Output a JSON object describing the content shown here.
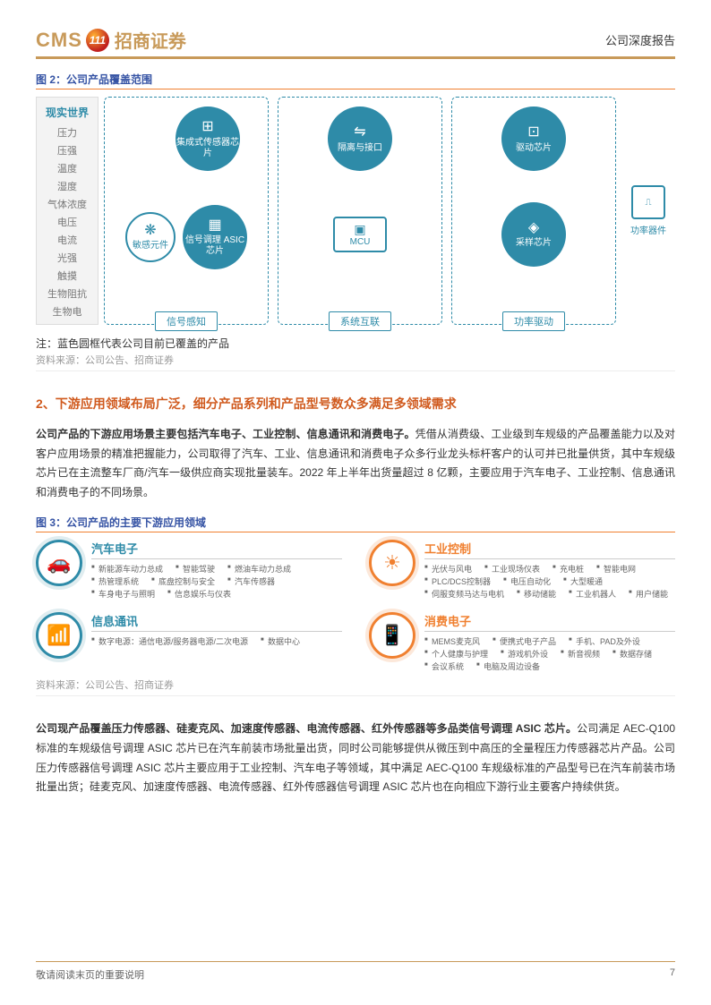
{
  "header": {
    "logo_cms": "CMS",
    "logo_badge": "111",
    "logo_cn": "招商证券",
    "doc_type": "公司深度报告"
  },
  "colors": {
    "accent_gold": "#c89a5a",
    "accent_blue": "#3553a4",
    "accent_orange": "#f08030",
    "teal": "#2e8ba8",
    "section_orange": "#d05a1e"
  },
  "figure2": {
    "title": "图 2：公司产品覆盖范围",
    "sensor_header": "现实世界",
    "sensors": [
      "压力",
      "压强",
      "温度",
      "湿度",
      "气体浓度",
      "电压",
      "电流",
      "光强",
      "触摸",
      "生物阻抗",
      "生物电"
    ],
    "group1": {
      "label": "信号感知",
      "node_a": "敏感元件",
      "node_b1": "集成式传感器芯片",
      "node_b2": "信号调理\nASIC芯片"
    },
    "group2": {
      "label": "系统互联",
      "node_top": "隔离与接口",
      "node_bottom": "MCU"
    },
    "group3": {
      "label": "功率驱动",
      "node_top": "驱动芯片",
      "node_bottom": "采样芯片"
    },
    "power": "功率器件",
    "note": "注：蓝色圆框代表公司目前已覆盖的产品",
    "source": "资料来源：公司公告、招商证券"
  },
  "section2": {
    "heading": "2、下游应用领域布局广泛，细分产品系列和产品型号数众多满足多领域需求",
    "para_bold": "公司产品的下游应用场景主要包括汽车电子、工业控制、信息通讯和消费电子。",
    "para_rest": "凭借从消费级、工业级到车规级的产品覆盖能力以及对客户应用场景的精准把握能力，公司取得了汽车、工业、信息通讯和消费电子众多行业龙头标杆客户的认可并已批量供货，其中车规级芯片已在主流整车厂商/汽车一级供应商实现批量装车。2022 年上半年出货量超过 8 亿颗，主要应用于汽车电子、工业控制、信息通讯和消费电子的不同场景。"
  },
  "figure3": {
    "title": "图 3：公司产品的主要下游应用领域",
    "apps": [
      {
        "title": "汽车电子",
        "color": "blue",
        "items": [
          "新能源车动力总成",
          "智能驾驶",
          "燃油车动力总成",
          "热管理系统",
          "底盘控制与安全",
          "汽车传感器",
          "车身电子与照明",
          "信息娱乐与仪表"
        ]
      },
      {
        "title": "工业控制",
        "color": "orange",
        "items": [
          "光伏与风电",
          "工业现场仪表",
          "充电桩",
          "智能电网",
          "PLC/DCS控制器",
          "电压自动化",
          "大型暖通",
          "伺服变频马达与电机",
          "移动储能",
          "工业机器人",
          "用户储能"
        ]
      },
      {
        "title": "信息通讯",
        "color": "blue",
        "items": [
          "数字电源：通信电源/服务器电源/二次电源",
          "数据中心"
        ]
      },
      {
        "title": "消费电子",
        "color": "orange",
        "items": [
          "MEMS麦克风",
          "便携式电子产品",
          "手机、PAD及外设",
          "个人健康与护理",
          "游戏机外设",
          "新音视频",
          "数据存储",
          "会议系统",
          "电脑及周边设备"
        ]
      }
    ],
    "source": "资料来源：公司公告、招商证券"
  },
  "para3": {
    "bold": "公司现产品覆盖压力传感器、硅麦克风、加速度传感器、电流传感器、红外传感器等多品类信号调理 ASIC 芯片。",
    "rest": "公司满足 AEC-Q100 标准的车规级信号调理 ASIC 芯片已在汽车前装市场批量出货，同时公司能够提供从微压到中高压的全量程压力传感器芯片产品。公司压力传感器信号调理 ASIC 芯片主要应用于工业控制、汽车电子等领域，其中满足 AEC-Q100 车规级标准的产品型号已在汽车前装市场批量出货；硅麦克风、加速度传感器、电流传感器、红外传感器信号调理 ASIC 芯片也在向相应下游行业主要客户持续供货。"
  },
  "footer": {
    "left": "敬请阅读末页的重要说明",
    "page": "7"
  }
}
